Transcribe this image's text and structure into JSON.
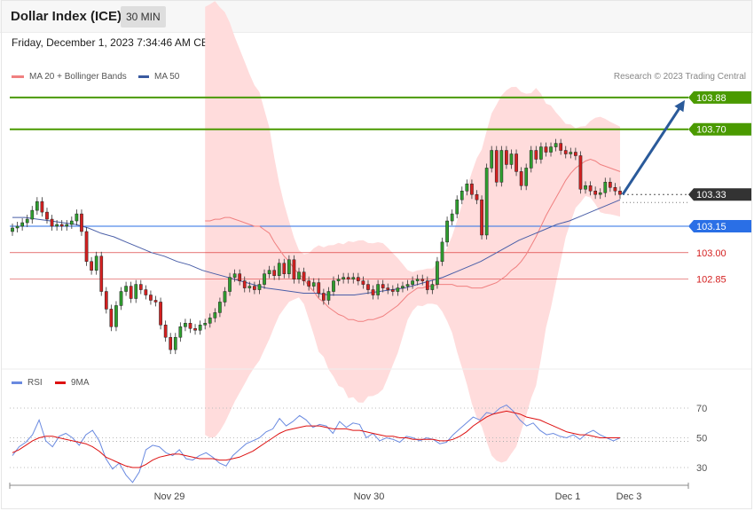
{
  "header": {
    "title": "Dollar Index (ICE)",
    "timeframe": "30 MIN",
    "date": "Friday, December 1, 2023 7:34:46 AM CET"
  },
  "legend": {
    "ma20_label": "MA 20 + Bollinger Bands",
    "ma50_label": "MA 50",
    "credit": "Research © 2023 Trading Central",
    "rsi_label": "RSI",
    "ma9_label": "9MA"
  },
  "colors": {
    "bull": "#2e9e2e",
    "bear": "#d42020",
    "band": "#ffdcdc",
    "ma20": "#f08080",
    "ma50": "#4a5fa8",
    "resistance": "#4a9a00",
    "pivot": "#2a6fe6",
    "support": "#d42020",
    "arrow": "#2a5a9a",
    "current": "#333333",
    "rsi": "#6a8ae0",
    "rsi_ma": "#dd1111"
  },
  "chart_data": [
    {
      "type": "candlestick",
      "symbol": "Dollar Index (ICE)",
      "interval": "30 MIN",
      "ylim": [
        102.35,
        103.95
      ],
      "x_labels": [
        "Nov 29",
        "Nov 30",
        "Dec 1",
        "Dec 3"
      ],
      "levels": [
        {
          "value": 103.88,
          "label": "103.88",
          "kind": "resistance"
        },
        {
          "value": 103.7,
          "label": "103.70",
          "kind": "resistance"
        },
        {
          "value": 103.33,
          "label": "103.33",
          "kind": "current"
        },
        {
          "value": 103.15,
          "label": "103.15",
          "kind": "pivot"
        },
        {
          "value": 103.0,
          "label": "103.00",
          "kind": "support"
        },
        {
          "value": 102.85,
          "label": "102.85",
          "kind": "support"
        }
      ],
      "closes": [
        103.14,
        103.15,
        103.17,
        103.19,
        103.24,
        103.29,
        103.23,
        103.19,
        103.15,
        103.16,
        103.15,
        103.16,
        103.18,
        103.22,
        103.12,
        102.95,
        102.9,
        102.98,
        102.78,
        102.68,
        102.58,
        102.7,
        102.78,
        102.81,
        102.74,
        102.82,
        102.79,
        102.76,
        102.73,
        102.72,
        102.59,
        102.52,
        102.45,
        102.52,
        102.58,
        102.6,
        102.57,
        102.56,
        102.59,
        102.6,
        102.63,
        102.66,
        102.72,
        102.78,
        102.86,
        102.88,
        102.84,
        102.8,
        102.81,
        102.79,
        102.82,
        102.88,
        102.9,
        102.87,
        102.94,
        102.88,
        102.96,
        102.85,
        102.89,
        102.84,
        102.81,
        102.83,
        102.77,
        102.73,
        102.78,
        102.84,
        102.85,
        102.86,
        102.85,
        102.86,
        102.84,
        102.82,
        102.79,
        102.76,
        102.82,
        102.8,
        102.79,
        102.78,
        102.8,
        102.81,
        102.82,
        102.84,
        102.85,
        102.84,
        102.79,
        102.82,
        102.95,
        103.06,
        103.18,
        103.22,
        103.3,
        103.35,
        103.39,
        103.33,
        103.3,
        103.1,
        103.48,
        103.58,
        103.4,
        103.58,
        103.5,
        103.56,
        103.46,
        103.38,
        103.48,
        103.58,
        103.53,
        103.6,
        103.57,
        103.6,
        103.62,
        103.58,
        103.56,
        103.57,
        103.55,
        103.36,
        103.38,
        103.35,
        103.33,
        103.34,
        103.4,
        103.37,
        103.35,
        103.33
      ],
      "ma20": [
        103.18,
        103.18,
        103.19,
        103.19,
        103.2,
        103.2,
        103.19,
        103.18,
        103.17,
        103.16,
        103.15,
        103.15,
        103.13,
        103.11,
        103.06,
        103.02,
        102.98,
        102.95,
        102.91,
        102.88,
        102.85,
        102.81,
        102.78,
        102.74,
        102.72,
        102.69,
        102.67,
        102.65,
        102.64,
        102.62,
        102.62,
        102.61,
        102.61,
        102.62,
        102.62,
        102.63,
        102.64,
        102.66,
        102.68,
        102.7,
        102.73,
        102.76,
        102.78,
        102.8,
        102.8,
        102.81,
        102.81,
        102.82,
        102.82,
        102.82,
        102.82,
        102.81,
        102.81,
        102.81,
        102.8,
        102.8,
        102.8,
        102.81,
        102.82,
        102.83,
        102.85,
        102.87,
        102.9,
        102.92,
        102.95,
        102.99,
        103.04,
        103.09,
        103.15,
        103.21,
        103.26,
        103.31,
        103.36,
        103.41,
        103.45,
        103.48,
        103.5,
        103.52,
        103.53,
        103.52,
        103.5,
        103.49,
        103.48,
        103.47,
        103.46
      ],
      "ma50": [
        103.2,
        103.2,
        103.19,
        103.18,
        103.17,
        103.16,
        103.14,
        103.11,
        103.09,
        103.06,
        103.03,
        103.0,
        102.98,
        102.95,
        102.93,
        102.9,
        102.88,
        102.86,
        102.84,
        102.82,
        102.8,
        102.79,
        102.78,
        102.77,
        102.77,
        102.76,
        102.76,
        102.76,
        102.77,
        102.78,
        102.79,
        102.8,
        102.82,
        102.84,
        102.86,
        102.89,
        102.92,
        102.95,
        102.99,
        103.03,
        103.07,
        103.1,
        103.13,
        103.16,
        103.18,
        103.21,
        103.24,
        103.27,
        103.3
      ],
      "projection": {
        "from": 103.33,
        "to": 103.88
      }
    },
    {
      "type": "line",
      "title": "RSI",
      "ylim": [
        20,
        80
      ],
      "yticks": [
        70,
        50,
        30
      ],
      "series": [
        {
          "name": "RSI",
          "values": [
            38,
            44,
            47,
            52,
            62,
            48,
            44,
            51,
            53,
            50,
            45,
            52,
            55,
            48,
            36,
            29,
            33,
            25,
            20,
            27,
            42,
            45,
            44,
            40,
            38,
            42,
            36,
            35,
            38,
            40,
            37,
            33,
            31,
            38,
            42,
            46,
            48,
            50,
            54,
            56,
            63,
            58,
            61,
            65,
            62,
            57,
            59,
            58,
            53,
            61,
            57,
            60,
            59,
            50,
            53,
            48,
            50,
            49,
            47,
            51,
            50,
            48,
            50,
            49,
            46,
            47,
            52,
            56,
            60,
            64,
            62,
            67,
            66,
            70,
            72,
            68,
            62,
            58,
            60,
            55,
            52,
            53,
            51,
            50,
            52,
            49,
            53,
            55,
            52,
            50,
            48,
            50
          ]
        },
        {
          "name": "9MA",
          "values": [
            40,
            42,
            45,
            48,
            50,
            51,
            51,
            50,
            49,
            48,
            47,
            46,
            44,
            41,
            37,
            35,
            33,
            31,
            30,
            30,
            32,
            35,
            37,
            38,
            39,
            39,
            38,
            37,
            36,
            36,
            36,
            35,
            35,
            36,
            37,
            39,
            41,
            44,
            47,
            50,
            53,
            55,
            56,
            57,
            58,
            58,
            58,
            57,
            56,
            56,
            56,
            55,
            55,
            54,
            53,
            52,
            51,
            51,
            50,
            50,
            49,
            49,
            49,
            49,
            48,
            48,
            49,
            51,
            54,
            58,
            61,
            64,
            66,
            67,
            68,
            67,
            66,
            64,
            63,
            62,
            60,
            58,
            56,
            54,
            53,
            52,
            52,
            51,
            50,
            50,
            50,
            50
          ]
        }
      ]
    }
  ]
}
